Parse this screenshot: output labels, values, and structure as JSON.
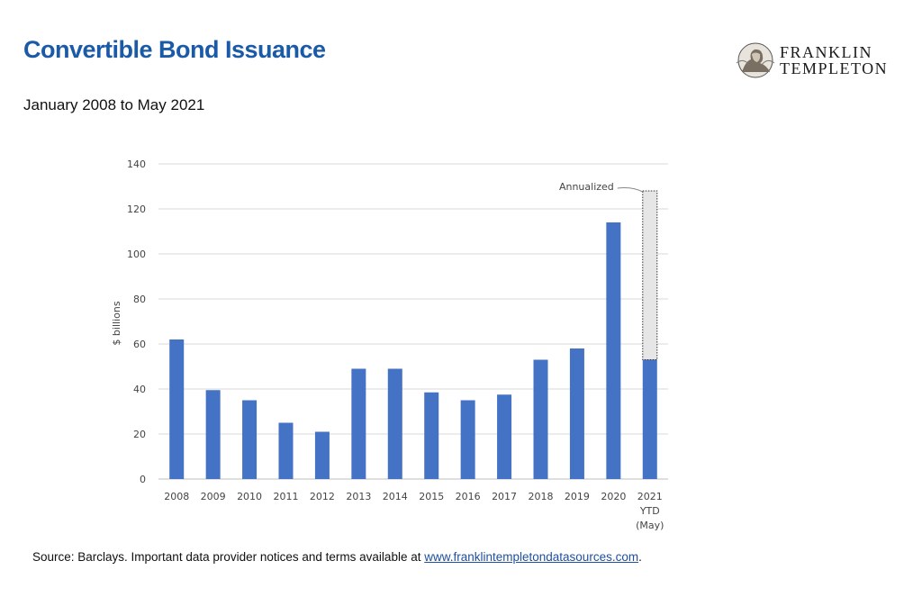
{
  "header": {
    "title": "Convertible Bond Issuance",
    "subtitle": "January 2008 to May 2021"
  },
  "logo": {
    "line1": "FRANKLIN",
    "line2": "TEMPLETON",
    "icon": "franklin-seal-icon"
  },
  "footer": {
    "source_text": "Source: Barclays. Important data provider notices and terms available at ",
    "link_text": "www.franklintempletondatasources.com",
    "after_link": "."
  },
  "colors": {
    "title": "#1b5aa6",
    "bar": "#4472c4",
    "annualized_fill": "#e6e6e6",
    "grid": "#d9d9d9"
  },
  "chart_data": {
    "type": "bar",
    "categories": [
      "2008",
      "2009",
      "2010",
      "2011",
      "2012",
      "2013",
      "2014",
      "2015",
      "2016",
      "2017",
      "2018",
      "2019",
      "2020",
      "2021"
    ],
    "category_sublabels": {
      "2021": [
        "YTD",
        "(May)"
      ]
    },
    "values": [
      62,
      39.5,
      35,
      25,
      21,
      49,
      49,
      38.5,
      35,
      37.5,
      53,
      58,
      114,
      53
    ],
    "annualized": {
      "category": "2021",
      "value": 128,
      "label": "Annualized"
    },
    "ylabel": "$ billions",
    "xlabel": "",
    "ylim": [
      0,
      140
    ],
    "yticks": [
      0,
      20,
      40,
      60,
      80,
      100,
      120,
      140
    ],
    "grid": true,
    "legend": "none"
  }
}
